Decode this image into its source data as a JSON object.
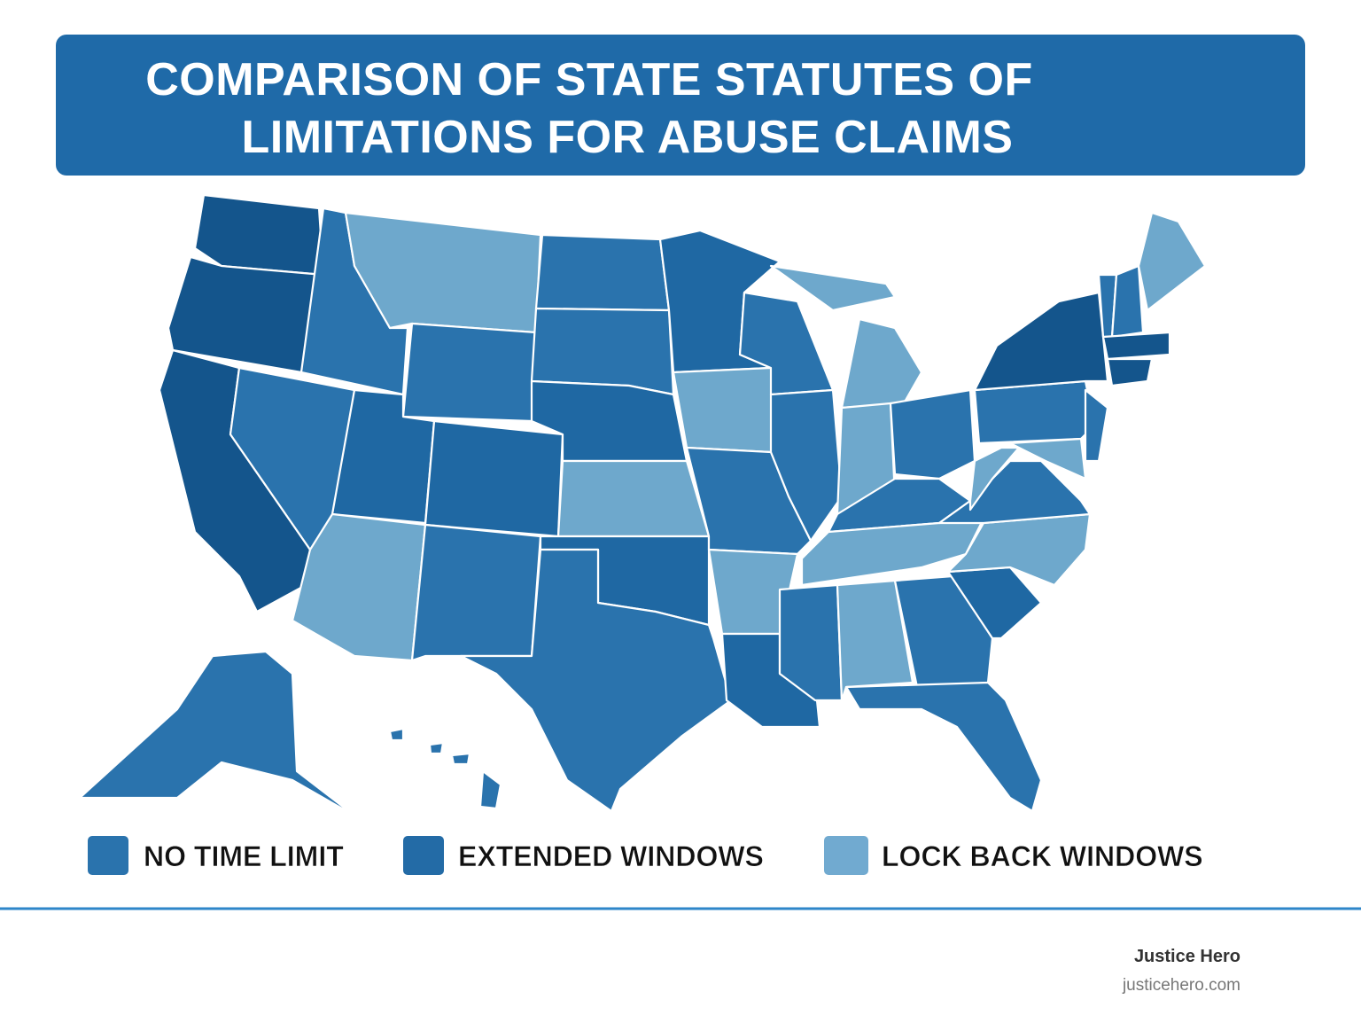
{
  "header": {
    "title_lines": [
      "COMPARISON OF STATE STATUTES OF",
      "LIMITATIONS FOR ABUSE CLAIMS"
    ]
  },
  "legend": [
    {
      "label": "NO TIME LIMIT"
    },
    {
      "label": "EXTENDED WINDOWS"
    },
    {
      "label": "LOCK BACK WINDOWS"
    }
  ],
  "footer": {
    "brand": "Justice Hero",
    "url": "justicehero.com"
  }
}
